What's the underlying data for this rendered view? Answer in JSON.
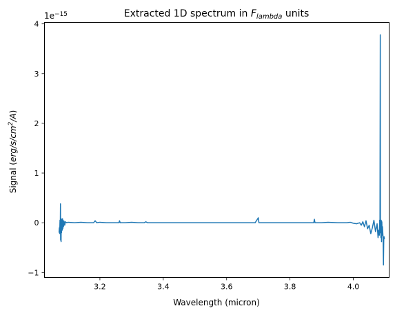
{
  "chart_data": {
    "type": "line",
    "title": {
      "prefix": "Extracted 1D spectrum in ",
      "var": "F",
      "subscript": "lambda",
      "suffix": " units"
    },
    "xlabel": "Wavelength (micron)",
    "ylabel": {
      "prefix": "Signal (",
      "unit_before": "erg/s/cm",
      "superscript": "2",
      "unit_after": "/A",
      "suffix": ")"
    },
    "y_offset_text": {
      "mantissa": "1e",
      "exponent": "−15"
    },
    "x_ticks": [
      {
        "value": 3.2,
        "label": "3.2"
      },
      {
        "value": 3.4,
        "label": "3.4"
      },
      {
        "value": 3.6,
        "label": "3.6"
      },
      {
        "value": 3.8,
        "label": "3.8"
      },
      {
        "value": 4.0,
        "label": "4.0"
      }
    ],
    "y_ticks": [
      {
        "value": -1,
        "label": "−1"
      },
      {
        "value": 0,
        "label": "0"
      },
      {
        "value": 1,
        "label": "1"
      },
      {
        "value": 2,
        "label": "2"
      },
      {
        "value": 3,
        "label": "3"
      },
      {
        "value": 4,
        "label": "4"
      }
    ],
    "y_scale": "1e-15",
    "xlim": [
      3.025,
      4.113
    ],
    "ylim": [
      -1.1,
      4.03
    ],
    "grid": false,
    "series": [
      {
        "color": "#1f77b4",
        "x": [
          3.071,
          3.072,
          3.073,
          3.074,
          3.075,
          3.0755,
          3.076,
          3.0765,
          3.077,
          3.0775,
          3.078,
          3.079,
          3.08,
          3.081,
          3.082,
          3.083,
          3.084,
          3.085,
          3.087,
          3.089,
          3.091,
          3.095,
          3.1,
          3.12,
          3.14,
          3.16,
          3.18,
          3.185,
          3.19,
          3.2,
          3.22,
          3.24,
          3.26,
          3.262,
          3.264,
          3.28,
          3.3,
          3.32,
          3.34,
          3.345,
          3.35,
          3.4,
          3.45,
          3.5,
          3.55,
          3.6,
          3.65,
          3.69,
          3.698,
          3.7,
          3.702,
          3.71,
          3.75,
          3.8,
          3.85,
          3.875,
          3.877,
          3.879,
          3.9,
          3.92,
          3.95,
          3.98,
          3.99,
          4.0,
          4.01,
          4.02,
          4.025,
          4.03,
          4.035,
          4.04,
          4.045,
          4.05,
          4.055,
          4.06,
          4.065,
          4.07,
          4.075,
          4.078,
          4.08,
          4.082,
          4.083,
          4.084,
          4.085,
          4.0855,
          4.086,
          4.087,
          4.088,
          4.089,
          4.09,
          4.091,
          4.092,
          4.093,
          4.094,
          4.095,
          4.096,
          4.097,
          4.098
        ],
        "y": [
          -0.2,
          -0.1,
          -0.22,
          0.05,
          -0.05,
          0.38,
          -0.35,
          -0.25,
          0.02,
          -0.38,
          0.08,
          -0.2,
          0.06,
          -0.15,
          0.08,
          -0.12,
          0.05,
          -0.08,
          0.03,
          -0.05,
          0.02,
          0.0,
          0.01,
          0.0,
          0.01,
          0.0,
          0.0,
          0.04,
          0.0,
          0.01,
          0.0,
          0.0,
          0.0,
          0.04,
          0.0,
          0.0,
          0.01,
          0.0,
          0.0,
          0.02,
          0.0,
          0.0,
          0.0,
          0.0,
          0.0,
          0.0,
          0.0,
          0.0,
          0.08,
          0.1,
          0.0,
          0.0,
          0.0,
          0.0,
          0.0,
          0.0,
          0.07,
          0.0,
          0.0,
          0.01,
          0.0,
          0.0,
          0.01,
          -0.01,
          -0.02,
          0.0,
          -0.05,
          0.02,
          -0.08,
          0.04,
          -0.12,
          -0.05,
          -0.22,
          -0.1,
          0.05,
          -0.18,
          -0.02,
          -0.3,
          -0.15,
          -0.25,
          0.05,
          -0.2,
          3.78,
          -0.15,
          0.01,
          -0.3,
          0.05,
          -0.38,
          0.02,
          -0.25,
          -0.08,
          -0.2,
          -0.32,
          -0.85,
          -0.35,
          -0.28,
          -0.33
        ]
      }
    ]
  }
}
